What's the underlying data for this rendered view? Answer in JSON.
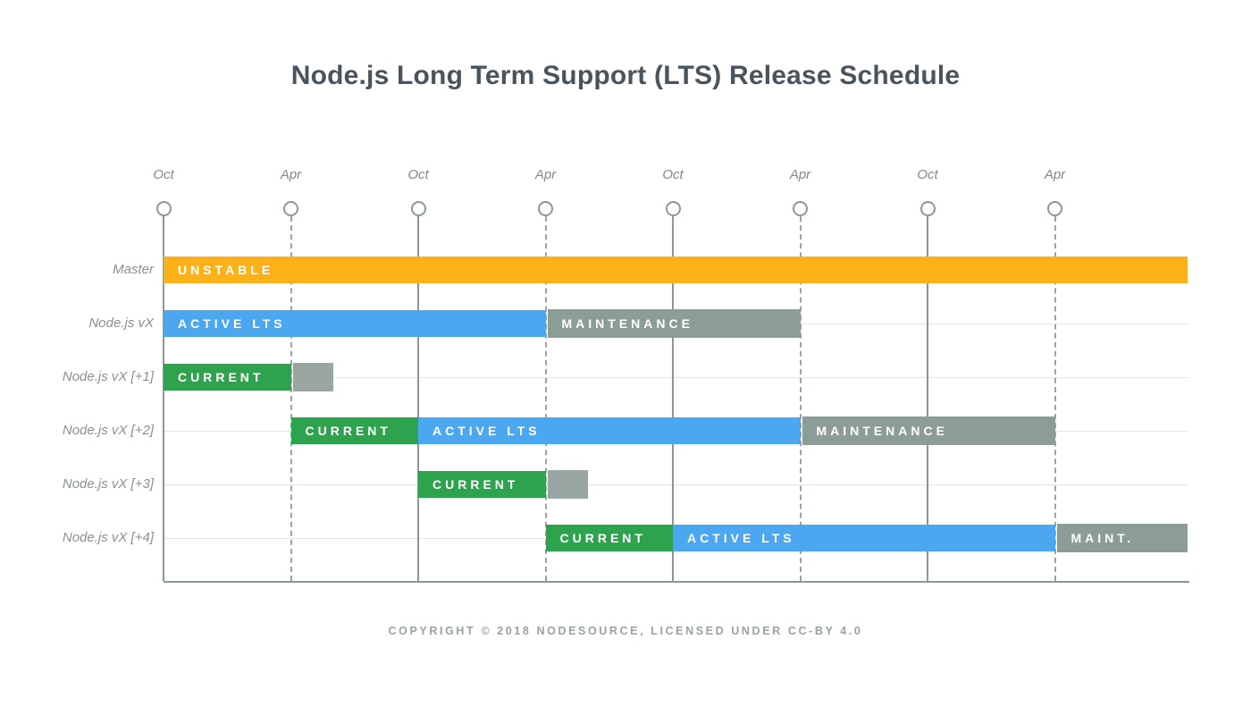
{
  "title": "Node.js Long Term Support (LTS) Release Schedule",
  "footer": "COPYRIGHT © 2018 NODESOURCE, LICENSED UNDER CC-BY 4.0",
  "colors": {
    "unstable": "#fbb117",
    "active": "#4aa7f0",
    "current": "#2ea34d",
    "maintenance": "#8c9c97",
    "stub": "#99a6a1",
    "axis": "#8b9995",
    "grid": "#e3e6e4",
    "title_text": "#4a545c",
    "label_text": "#879290",
    "footer_text": "#95a4a0",
    "bar_text": "#ffffff"
  },
  "chart_data": {
    "type": "gantt-timeline",
    "title": "Node.js Long Term Support (LTS) Release Schedule",
    "x_axis": {
      "tick_interval_months": 6,
      "ticks": [
        {
          "label": "Oct",
          "line": "solid"
        },
        {
          "label": "Apr",
          "line": "dashed"
        },
        {
          "label": "Oct",
          "line": "solid"
        },
        {
          "label": "Apr",
          "line": "dashed"
        },
        {
          "label": "Oct",
          "line": "solid"
        },
        {
          "label": "Apr",
          "line": "dashed"
        },
        {
          "label": "Oct",
          "line": "solid"
        },
        {
          "label": "Apr",
          "line": "dashed"
        }
      ]
    },
    "rows": [
      {
        "label": "Master",
        "bars": [
          {
            "text": "UNSTABLE",
            "kind": "unstable",
            "start": 0,
            "end": 8.04
          }
        ]
      },
      {
        "label": "Node.js vX",
        "bars": [
          {
            "text": "ACTIVE LTS",
            "kind": "active",
            "start": 0,
            "end": 3
          },
          {
            "text": "MAINTENANCE",
            "kind": "maintenance",
            "start": 3,
            "end": 5
          }
        ]
      },
      {
        "label": "Node.js vX [+1]",
        "bars": [
          {
            "text": "CURRENT",
            "kind": "current",
            "start": 0,
            "end": 1
          },
          {
            "text": "",
            "kind": "stub",
            "start": 1,
            "end": 1.33
          }
        ]
      },
      {
        "label": "Node.js vX [+2]",
        "bars": [
          {
            "text": "CURRENT",
            "kind": "current",
            "start": 1,
            "end": 2
          },
          {
            "text": "ACTIVE LTS",
            "kind": "active",
            "start": 2,
            "end": 5
          },
          {
            "text": "MAINTENANCE",
            "kind": "maintenance",
            "start": 5,
            "end": 7
          }
        ]
      },
      {
        "label": "Node.js vX [+3]",
        "bars": [
          {
            "text": "CURRENT",
            "kind": "current",
            "start": 2,
            "end": 3
          },
          {
            "text": "",
            "kind": "stub",
            "start": 3,
            "end": 3.33
          }
        ]
      },
      {
        "label": "Node.js vX [+4]",
        "bars": [
          {
            "text": "CURRENT",
            "kind": "current",
            "start": 3,
            "end": 4
          },
          {
            "text": "ACTIVE LTS",
            "kind": "active",
            "start": 4,
            "end": 7
          },
          {
            "text": "MAINT.",
            "kind": "maintenance",
            "start": 7,
            "end": 8.04
          }
        ]
      }
    ]
  }
}
